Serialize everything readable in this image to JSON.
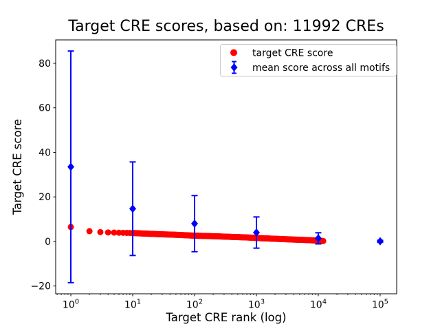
{
  "chart_data": {
    "type": "scatter",
    "title": "Target CRE scores, based on: 11992 CREs",
    "xlabel": "Target CRE rank (log)",
    "ylabel": "Target CRE score",
    "xscale": "log",
    "xlim": [
      0.569,
      185000
    ],
    "ylim": [
      -23.5,
      90.5
    ],
    "grid": false,
    "x_major_ticks": [
      1,
      10,
      100,
      1000,
      10000,
      100000
    ],
    "x_tick_labels": [
      "10^0",
      "10^1",
      "10^2",
      "10^3",
      "10^4",
      "10^5"
    ],
    "y_ticks": [
      -20,
      0,
      20,
      40,
      60,
      80
    ],
    "y_tick_labels": [
      "−20",
      "0",
      "20",
      "40",
      "60",
      "80"
    ],
    "legend": {
      "position": "upper right",
      "entries": [
        "target CRE score",
        "mean score across all motifs"
      ]
    },
    "series": [
      {
        "name": "target CRE score",
        "marker": "circle",
        "color": "#ff0000",
        "n_points": 11992,
        "note": "dense monotonically decreasing scatter; control points below, log-x interpolated",
        "control_ranks": [
          1,
          2,
          3,
          4,
          5,
          6,
          7,
          8,
          9,
          10,
          15,
          20,
          30,
          50,
          100,
          200,
          400,
          700,
          1000,
          2000,
          4000,
          7000,
          10000,
          11992
        ],
        "control_scores": [
          6.5,
          4.6,
          4.2,
          4.05,
          3.98,
          3.93,
          3.88,
          3.84,
          3.81,
          3.8,
          3.55,
          3.4,
          3.2,
          3.0,
          2.6,
          2.35,
          2.05,
          1.8,
          1.55,
          1.2,
          0.85,
          0.6,
          0.35,
          0.2
        ]
      },
      {
        "name": "mean score across all motifs",
        "marker": "diamond",
        "color": "#0000ff",
        "ranks": [
          1,
          10,
          100,
          1000,
          10000,
          100000
        ],
        "means": [
          33.5,
          14.7,
          8.0,
          4.0,
          1.4,
          0.1
        ],
        "yerr": [
          52.0,
          21.0,
          12.6,
          7.0,
          2.5,
          0.4
        ]
      }
    ]
  },
  "colors": {
    "red": "#ff0000",
    "blue": "#0000ff",
    "axes": "#000000",
    "legend_border": "#cccccc",
    "background": "#ffffff"
  }
}
